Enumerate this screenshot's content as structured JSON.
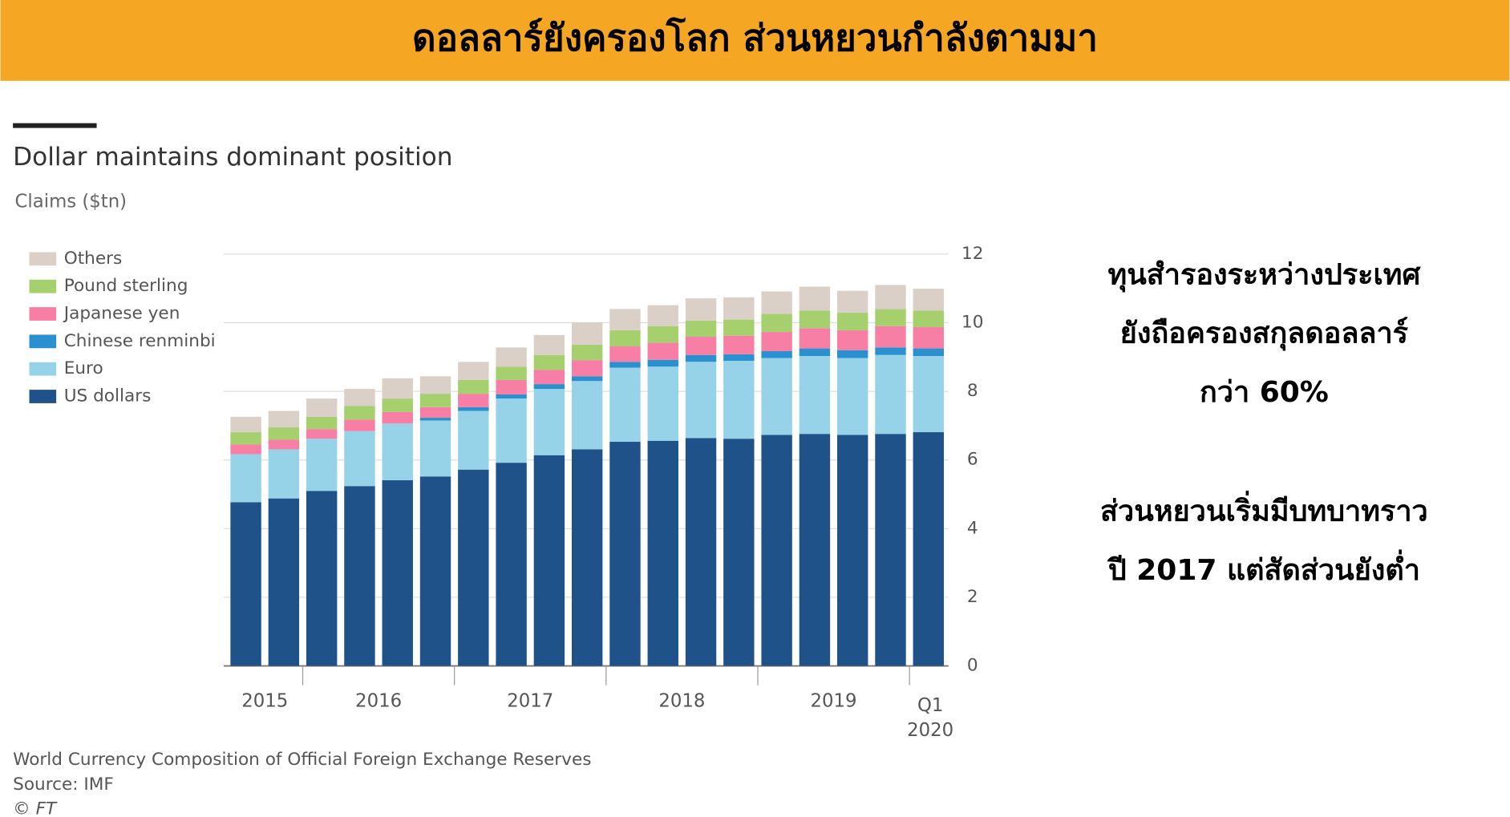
{
  "banner": "ดอลลาร์ยังครองโลก ส่วนหยวนกำลังตามมา",
  "notes": [
    [
      "ทุนสำรองระหว่างประเทศ",
      "ยังถือครองสกุลดอลลาร์",
      "กว่า 60%"
    ],
    [
      "ส่วนหยวนเริ่มมีบทบาทราว",
      "ปี 2017 แต่สัดส่วนยังต่ำ"
    ]
  ],
  "chart_data": {
    "type": "stacked_bar",
    "title": "Dollar maintains dominant position",
    "subtitle": "Claims ($tn)",
    "categories": [
      "2015",
      null,
      "2016",
      null,
      null,
      null,
      "2017",
      null,
      null,
      null,
      "2018",
      null,
      null,
      null,
      "2019",
      null,
      null,
      null,
      "Q1\n2020"
    ],
    "series": [
      {
        "name": "US dollars",
        "color": "#1f5289",
        "values": [
          4.77,
          4.88,
          5.1,
          5.24,
          5.41,
          5.52,
          5.72,
          5.92,
          6.14,
          6.31,
          6.53,
          6.56,
          6.64,
          6.62,
          6.73,
          6.76,
          6.73,
          6.76,
          6.81
        ]
      },
      {
        "name": "Euro",
        "color": "#96d3e8",
        "values": [
          1.4,
          1.43,
          1.52,
          1.6,
          1.65,
          1.63,
          1.71,
          1.87,
          1.93,
          1.99,
          2.16,
          2.16,
          2.22,
          2.27,
          2.24,
          2.27,
          2.24,
          2.3,
          2.22
        ]
      },
      {
        "name": "Chinese renminbi",
        "color": "#2a90d0",
        "values": [
          0,
          0,
          0,
          0,
          0,
          0.08,
          0.11,
          0.12,
          0.14,
          0.14,
          0.17,
          0.2,
          0.2,
          0.19,
          0.2,
          0.22,
          0.23,
          0.22,
          0.22
        ]
      },
      {
        "name": "Japanese yen",
        "color": "#f77fa5",
        "values": [
          0.28,
          0.28,
          0.28,
          0.34,
          0.34,
          0.31,
          0.39,
          0.42,
          0.42,
          0.47,
          0.45,
          0.5,
          0.53,
          0.54,
          0.56,
          0.59,
          0.58,
          0.62,
          0.62
        ]
      },
      {
        "name": "Pound sterling",
        "color": "#a6cf6e",
        "values": [
          0.36,
          0.36,
          0.36,
          0.39,
          0.39,
          0.39,
          0.4,
          0.39,
          0.43,
          0.45,
          0.47,
          0.48,
          0.47,
          0.47,
          0.53,
          0.51,
          0.51,
          0.5,
          0.48
        ]
      },
      {
        "name": "Others",
        "color": "#dbd0c8",
        "values": [
          0.45,
          0.48,
          0.53,
          0.5,
          0.59,
          0.51,
          0.53,
          0.56,
          0.58,
          0.65,
          0.62,
          0.61,
          0.65,
          0.65,
          0.65,
          0.7,
          0.64,
          0.7,
          0.64
        ]
      }
    ],
    "ylim": [
      0,
      12
    ],
    "yticks": [
      0,
      2,
      4,
      6,
      8,
      10,
      12
    ],
    "grid": true,
    "legend": "top-left",
    "footnotes": [
      "World Currency Composition of Official Foreign Exchange Reserves",
      "Source: IMF",
      "© FT"
    ]
  }
}
